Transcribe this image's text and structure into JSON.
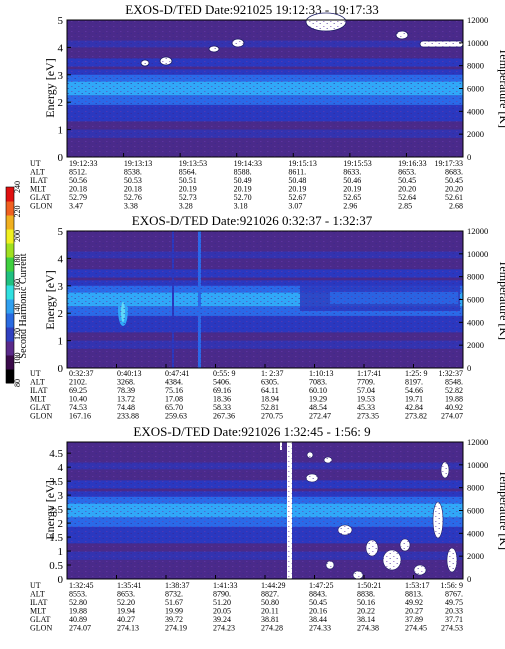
{
  "panels": [
    {
      "title": "EXOS-D/TED   Date:921025  19:12:33 - 19:17:33",
      "y_label": "Energy [eV]",
      "y2_label": "Temperature [K]",
      "y_ticks": [
        "0",
        "1",
        "2",
        "3",
        "4",
        "5"
      ],
      "y2_ticks": [
        "0",
        "2000",
        "4000",
        "6000",
        "8000",
        "10000",
        "12000"
      ],
      "row_labels": [
        "UT",
        "ALT",
        "ILAT",
        "MLT",
        "GLAT",
        "GLON"
      ],
      "columns": [
        [
          "19:12:33",
          "8512.",
          "50.56",
          "20.18",
          "52.79",
          "3.47"
        ],
        [
          "19:13:13",
          "8538.",
          "50.53",
          "20.18",
          "52.76",
          "3.38"
        ],
        [
          "19:13:53",
          "8564.",
          "50.51",
          "20.19",
          "52.73",
          "3.28"
        ],
        [
          "19:14:33",
          "8588.",
          "50.49",
          "20.19",
          "52.70",
          "3.18"
        ],
        [
          "19:15:13",
          "8611.",
          "50.48",
          "20.19",
          "52.67",
          "3.07"
        ],
        [
          "19:15:53",
          "8633.",
          "50.46",
          "20.19",
          "52.65",
          "2.96"
        ],
        [
          "19:16:33",
          "8653.",
          "50.45",
          "20.20",
          "52.64",
          "2.85"
        ],
        [
          "19:17:33",
          "8683.",
          "50.45",
          "20.20",
          "52.61",
          "2.68"
        ]
      ]
    },
    {
      "title": "EXOS-D/TED   Date:921026   0:32:37 - 1:32:37",
      "y_label": "Energy [eV]",
      "y2_label": "Temperature [K]",
      "y_ticks": [
        "0",
        "1",
        "2",
        "3",
        "4",
        "5"
      ],
      "y2_ticks": [
        "0",
        "2000",
        "4000",
        "6000",
        "8000",
        "10000",
        "12000"
      ],
      "row_labels": [
        "UT",
        "ALT",
        "ILAT",
        "MLT",
        "GLAT",
        "GLON"
      ],
      "columns": [
        [
          "0:32:37",
          "2102.",
          "69.25",
          "10.40",
          "74.53",
          "167.16"
        ],
        [
          "0:40:13",
          "3268.",
          "78.39",
          "13.72",
          "74.48",
          "233.88"
        ],
        [
          "0:47:41",
          "4384.",
          "75.16",
          "17.08",
          "65.70",
          "259.63"
        ],
        [
          "0:55: 9",
          "5406.",
          "69.16",
          "18.36",
          "58.33",
          "267.36"
        ],
        [
          "1: 2:37",
          "6305.",
          "64.11",
          "18.94",
          "52.81",
          "270.75"
        ],
        [
          "1:10:13",
          "7083.",
          "60.10",
          "19.29",
          "48.54",
          "272.47"
        ],
        [
          "1:17:41",
          "7709.",
          "57.04",
          "19.53",
          "45.33",
          "273.35"
        ],
        [
          "1:25: 9",
          "8197.",
          "54.66",
          "19.71",
          "42.84",
          "273.82"
        ],
        [
          "1:32:37",
          "8548.",
          "52.82",
          "19.88",
          "40.92",
          "274.07"
        ]
      ]
    },
    {
      "title": "EXOS-D/TED   Date:921026   1:32:45 - 1:56: 9",
      "y_label": "Energy [eV]",
      "y2_label": "Temperature [K]",
      "y_ticks": [
        "0",
        "0.5",
        "1",
        "1.5",
        "2",
        "2.5",
        "3",
        "3.5",
        "4",
        "4.5"
      ],
      "y2_ticks": [
        "0",
        "2000",
        "4000",
        "6000",
        "8000",
        "10000",
        "12000"
      ],
      "row_labels": [
        "UT",
        "ALT",
        "ILAT",
        "MLT",
        "GLAT",
        "GLON"
      ],
      "columns": [
        [
          "1:32:45",
          "8553.",
          "52.80",
          "19.88",
          "40.89",
          "274.07"
        ],
        [
          "1:35:41",
          "8653.",
          "52.20",
          "19.94",
          "40.27",
          "274.13"
        ],
        [
          "1:38:37",
          "8732.",
          "51.67",
          "19.99",
          "39.72",
          "274.19"
        ],
        [
          "1:41:33",
          "8790.",
          "51.20",
          "20.05",
          "39.24",
          "274.23"
        ],
        [
          "1:44:29",
          "8827.",
          "50.80",
          "20.11",
          "38.81",
          "274.28"
        ],
        [
          "1:47:25",
          "8843.",
          "50.45",
          "20.16",
          "38.44",
          "274.33"
        ],
        [
          "1:50:21",
          "8838.",
          "50.16",
          "20.22",
          "38.14",
          "274.38"
        ],
        [
          "1:53:17",
          "8813.",
          "49.92",
          "20.27",
          "37.89",
          "274.45"
        ],
        [
          "1:56: 9",
          "8767.",
          "49.75",
          "20.33",
          "37.71",
          "274.53"
        ]
      ]
    }
  ],
  "colorbar": {
    "label": "Second Harmonic Current",
    "ticks": [
      "80",
      "100",
      "120",
      "140",
      "160",
      "180",
      "200",
      "220",
      "240"
    ],
    "colors": [
      "#000000",
      "#3a0a4a",
      "#5a2a8a",
      "#3040c0",
      "#2a6ae0",
      "#30a0f0",
      "#30e0e0",
      "#20c080",
      "#40d040",
      "#a0e020",
      "#f0f020",
      "#f0b020",
      "#f06020",
      "#e01010"
    ]
  },
  "style": {
    "bg_purple": "#4a2a8a",
    "bg_navy": "#2a38c0",
    "band_blue": "#2a6ae8",
    "band_cyan": "#30a8f8",
    "speck": "#5a3aa0"
  }
}
